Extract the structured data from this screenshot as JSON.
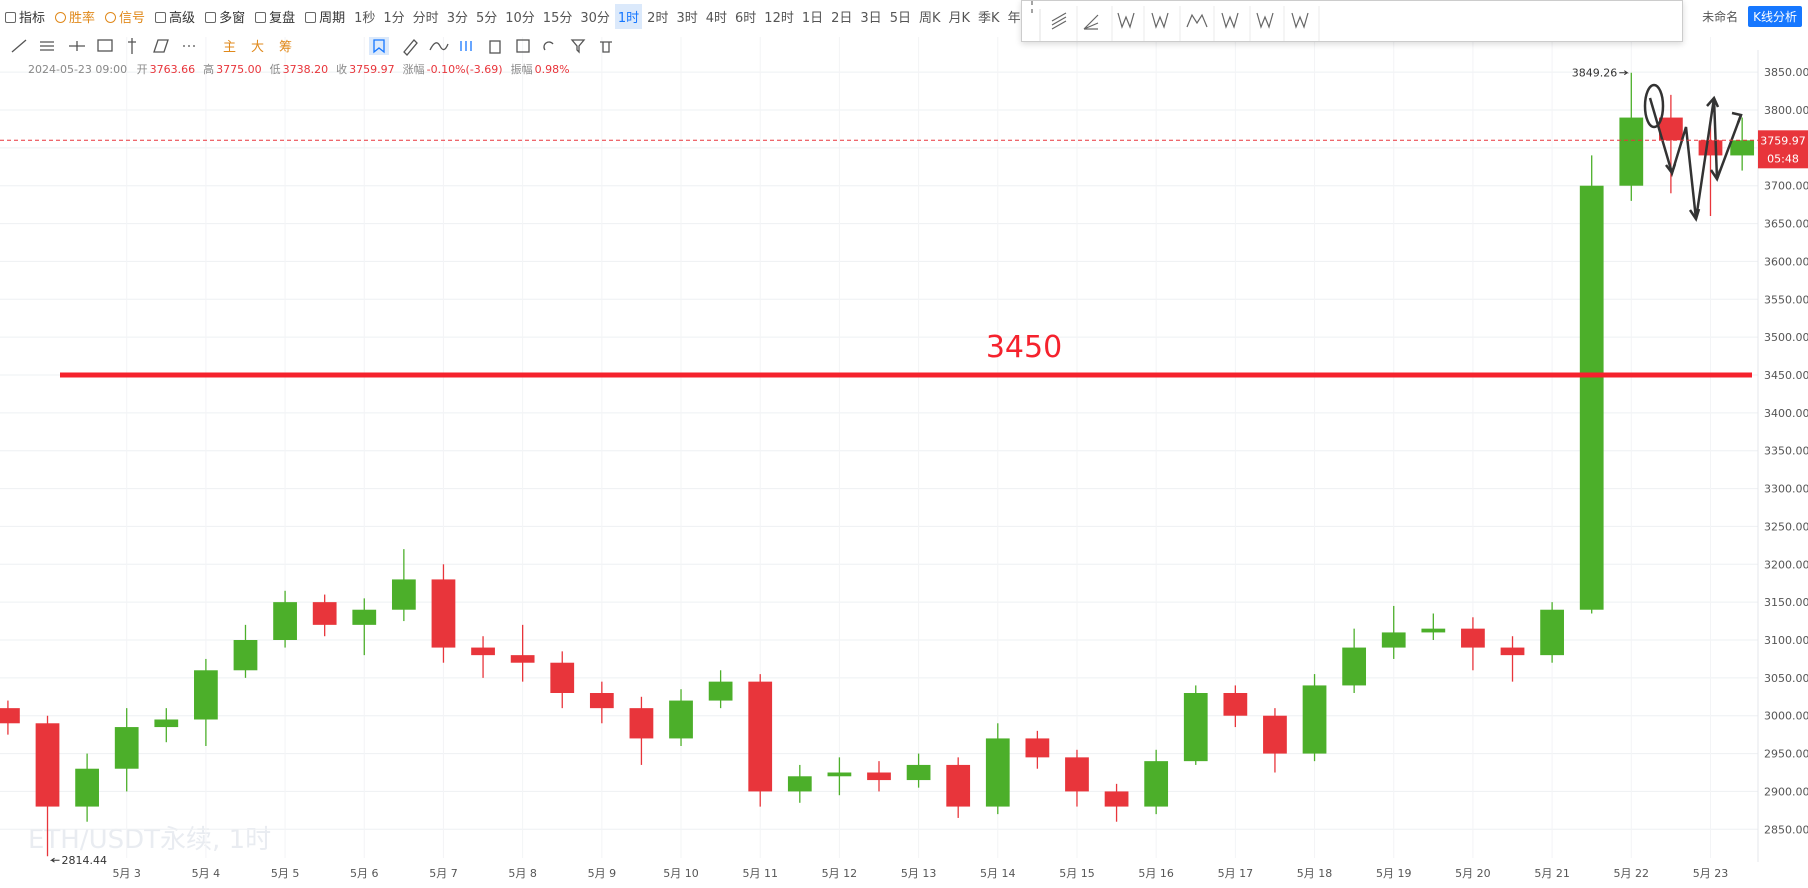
{
  "toolbar": {
    "items": [
      "指标",
      "胜率",
      "信号",
      "高级",
      "多窗",
      "复盘",
      "周期"
    ],
    "periods": [
      "1秒",
      "1分",
      "分时",
      "3分",
      "5分",
      "10分",
      "15分",
      "30分",
      "1时",
      "2时",
      "3时",
      "4时",
      "6时",
      "12时",
      "1日",
      "2日",
      "3日",
      "5日",
      "周K",
      "月K",
      "季K",
      "年K"
    ],
    "chart_name": "未命名",
    "analysis_button": "K线分析"
  },
  "drawing_tools": [
    "主",
    "大",
    "筹"
  ],
  "info": {
    "datetime": "2024-05-23 09:00",
    "fields": [
      {
        "label": "开",
        "value": "3763.66"
      },
      {
        "label": "高",
        "value": "3775.00"
      },
      {
        "label": "低",
        "value": "3738.20"
      },
      {
        "label": "收",
        "value": "3759.97"
      },
      {
        "label": "涨幅",
        "value": "-0.10%(-3.69)"
      },
      {
        "label": "振幅",
        "value": "0.98%"
      }
    ]
  },
  "watermark": "ETH/USDT永续, 1时",
  "countdown": "05:48",
  "chart_data": {
    "type": "candlestick",
    "up_color": "#4caf2a",
    "down_color": "#e8353b",
    "x": [
      1.5,
      2,
      2.5,
      3,
      3.5,
      4,
      4.5,
      5,
      5.5,
      6,
      6.5,
      7,
      7.5,
      8,
      8.5,
      9,
      9.5,
      10,
      10.5,
      11,
      11.5,
      12,
      12.5,
      13,
      13.5,
      14,
      14.5,
      15,
      15.5,
      16,
      16.5,
      17,
      17.5,
      18,
      18.5,
      19,
      19.5,
      20,
      20.5,
      21,
      21.5,
      22,
      22.5,
      23,
      23.4
    ],
    "open": [
      3010,
      2990,
      2880,
      2930,
      2985,
      2995,
      3060,
      3100,
      3150,
      3120,
      3140,
      3180,
      3090,
      3080,
      3070,
      3030,
      3010,
      2970,
      3020,
      3045,
      2900,
      2920,
      2925,
      2915,
      2935,
      2880,
      2970,
      2945,
      2900,
      2880,
      2940,
      3030,
      3000,
      2950,
      3040,
      3090,
      3110,
      3115,
      3090,
      3080,
      3140,
      3700,
      3790,
      3760,
      3740
    ],
    "high": [
      3020,
      3000,
      2950,
      3010,
      3010,
      3075,
      3120,
      3165,
      3160,
      3155,
      3220,
      3200,
      3105,
      3120,
      3085,
      3045,
      3025,
      3035,
      3060,
      3055,
      2935,
      2945,
      2940,
      2950,
      2945,
      2990,
      2980,
      2955,
      2910,
      2955,
      3040,
      3040,
      3010,
      3055,
      3115,
      3145,
      3135,
      3130,
      3105,
      3150,
      3740,
      3849.26,
      3820,
      3790,
      3790
    ],
    "low": [
      2975,
      2814.44,
      2860,
      2900,
      2965,
      2960,
      3050,
      3090,
      3105,
      3080,
      3125,
      3070,
      3050,
      3045,
      3010,
      2990,
      2935,
      2960,
      3010,
      2880,
      2885,
      2895,
      2900,
      2905,
      2865,
      2870,
      2930,
      2880,
      2860,
      2870,
      2935,
      2985,
      2925,
      2940,
      3030,
      3075,
      3100,
      3060,
      3045,
      3070,
      3135,
      3680,
      3690,
      3660,
      3720
    ],
    "close": [
      2990,
      2880,
      2930,
      2985,
      2995,
      3060,
      3100,
      3150,
      3120,
      3140,
      3180,
      3090,
      3080,
      3070,
      3030,
      3010,
      2970,
      3020,
      3045,
      2900,
      2920,
      2925,
      2915,
      2935,
      2880,
      2970,
      2945,
      2900,
      2880,
      2940,
      3030,
      3000,
      2950,
      3040,
      3090,
      3110,
      3115,
      3090,
      3080,
      3140,
      3700,
      3790,
      3760,
      3740,
      3759.97
    ],
    "xlim": [
      1.4,
      23.6
    ],
    "xticks": [
      {
        "value": 3,
        "label": "5月 3"
      },
      {
        "value": 4,
        "label": "5月 4"
      },
      {
        "value": 5,
        "label": "5月 5"
      },
      {
        "value": 6,
        "label": "5月 6"
      },
      {
        "value": 7,
        "label": "5月 7"
      },
      {
        "value": 8,
        "label": "5月 8"
      },
      {
        "value": 9,
        "label": "5月 9"
      },
      {
        "value": 10,
        "label": "5月 10"
      },
      {
        "value": 11,
        "label": "5月 11"
      },
      {
        "value": 12,
        "label": "5月 12"
      },
      {
        "value": 13,
        "label": "5月 13"
      },
      {
        "value": 14,
        "label": "5月 14"
      },
      {
        "value": 15,
        "label": "5月 15"
      },
      {
        "value": 16,
        "label": "5月 16"
      },
      {
        "value": 17,
        "label": "5月 17"
      },
      {
        "value": 18,
        "label": "5月 18"
      },
      {
        "value": 19,
        "label": "5月 19"
      },
      {
        "value": 20,
        "label": "5月 20"
      },
      {
        "value": 21,
        "label": "5月 21"
      },
      {
        "value": 22,
        "label": "5月 22"
      },
      {
        "value": 23,
        "label": "5月 23"
      }
    ],
    "ylim": [
      2820,
      3870
    ],
    "yticks": [
      {
        "value": 2850,
        "label": "2850.00"
      },
      {
        "value": 2900,
        "label": "2900.00"
      },
      {
        "value": 2950,
        "label": "2950.00"
      },
      {
        "value": 3000,
        "label": "3000.00"
      },
      {
        "value": 3050,
        "label": "3050.00"
      },
      {
        "value": 3100,
        "label": "3100.00"
      },
      {
        "value": 3150,
        "label": "3150.00"
      },
      {
        "value": 3200,
        "label": "3200.00"
      },
      {
        "value": 3250,
        "label": "3250.00"
      },
      {
        "value": 3300,
        "label": "3300.00"
      },
      {
        "value": 3350,
        "label": "3350.00"
      },
      {
        "value": 3400,
        "label": "3400.00"
      },
      {
        "value": 3450,
        "label": "3450.00"
      },
      {
        "value": 3500,
        "label": "3500.00"
      },
      {
        "value": 3550,
        "label": "3550.00"
      },
      {
        "value": 3600,
        "label": "3600.00"
      },
      {
        "value": 3650,
        "label": "3650.00"
      },
      {
        "value": 3700,
        "label": "3700.00"
      },
      {
        "value": 3750,
        "label": "3750.00"
      },
      {
        "value": 3800,
        "label": "3800.00"
      },
      {
        "value": 3850,
        "label": "3850.00"
      }
    ],
    "grid": true,
    "reference_line": 3450,
    "reference_color": "#f5222d"
  }
}
